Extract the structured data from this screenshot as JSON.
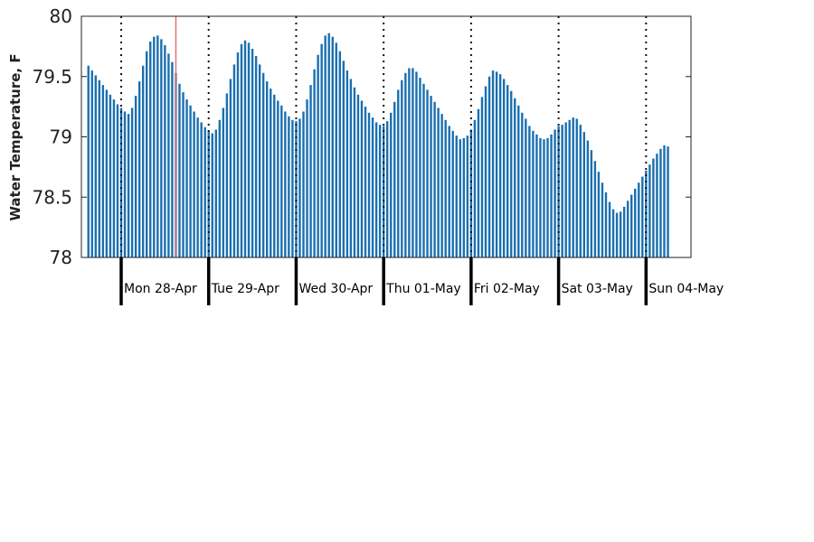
{
  "chart_data": {
    "type": "bar",
    "title": "",
    "xlabel": "",
    "ylabel": "Water Temperature, F",
    "ylim": [
      78,
      80
    ],
    "yticks": [
      "78",
      "78.5",
      "79",
      "79.5",
      "80"
    ],
    "x_unit": "hours since midnight Sun 27-Apr (hourly readings)",
    "day_labels": [
      "Mon 28-Apr",
      "Tue 29-Apr",
      "Wed 30-Apr",
      "Thu 01-May",
      "Fri 02-May",
      "Sat 03-May",
      "Sun 04-May"
    ],
    "current_time_marker_x": 39,
    "bar_color": "#1a6fb0",
    "marker_color": "#e57373",
    "series": [
      {
        "name": "Water Temperature",
        "x_start": 15,
        "x_step": 1,
        "values": [
          79.59,
          79.55,
          79.51,
          79.47,
          79.43,
          79.39,
          79.35,
          79.31,
          79.27,
          79.24,
          79.21,
          79.19,
          79.24,
          79.34,
          79.46,
          79.59,
          79.71,
          79.79,
          79.83,
          79.84,
          79.81,
          79.76,
          79.69,
          79.62,
          79.53,
          79.44,
          79.37,
          79.31,
          79.26,
          79.21,
          79.16,
          79.12,
          79.08,
          79.05,
          79.03,
          79.06,
          79.14,
          79.24,
          79.36,
          79.48,
          79.6,
          79.7,
          79.77,
          79.8,
          79.78,
          79.73,
          79.67,
          79.6,
          79.53,
          79.46,
          79.4,
          79.35,
          79.3,
          79.26,
          79.21,
          79.17,
          79.14,
          79.13,
          79.15,
          79.21,
          79.31,
          79.43,
          79.56,
          79.68,
          79.77,
          79.84,
          79.86,
          79.83,
          79.78,
          79.71,
          79.63,
          79.55,
          79.48,
          79.41,
          79.35,
          79.3,
          79.25,
          79.2,
          79.16,
          79.12,
          79.1,
          79.09,
          79.13,
          79.2,
          79.29,
          79.39,
          79.47,
          79.53,
          79.57,
          79.57,
          79.54,
          79.49,
          79.44,
          79.39,
          79.34,
          79.29,
          79.24,
          79.19,
          79.14,
          79.09,
          79.05,
          79.01,
          78.98,
          78.99,
          79.01,
          79.06,
          79.14,
          79.23,
          79.33,
          79.42,
          79.5,
          79.55,
          79.54,
          79.52,
          79.48,
          79.43,
          79.38,
          79.32,
          79.26,
          79.2,
          79.15,
          79.09,
          79.05,
          79.02,
          78.99,
          78.98,
          78.99,
          79.02,
          79.06,
          79.09,
          79.1,
          79.12,
          79.14,
          79.16,
          79.15,
          79.1,
          79.04,
          78.97,
          78.89,
          78.8,
          78.71,
          78.62,
          78.54,
          78.46,
          78.4,
          78.37,
          78.38,
          78.42,
          78.47,
          78.52,
          78.57,
          78.62,
          78.67,
          78.72,
          78.77,
          78.82,
          78.86,
          78.9,
          78.93,
          78.92
        ]
      }
    ]
  }
}
